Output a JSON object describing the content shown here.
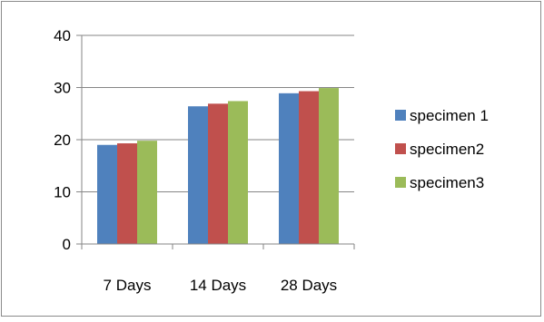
{
  "chart_data": {
    "type": "bar",
    "categories": [
      "7 Days",
      "14 Days",
      "28 Days"
    ],
    "series": [
      {
        "name": "specimen 1",
        "values": [
          19.0,
          26.4,
          28.9
        ],
        "color": "#4f81bd"
      },
      {
        "name": "specimen2",
        "values": [
          19.3,
          26.9,
          29.3
        ],
        "color": "#c0504d"
      },
      {
        "name": "specimen3",
        "values": [
          19.8,
          27.4,
          29.9
        ],
        "color": "#9bbb59"
      }
    ],
    "ylim": [
      0,
      40
    ],
    "yticks": [
      0,
      10,
      20,
      30,
      40
    ],
    "grid": true,
    "legend_position": "right",
    "title": "",
    "xlabel": "",
    "ylabel": "",
    "axis_color": "#868686",
    "grid_color": "#868686"
  }
}
